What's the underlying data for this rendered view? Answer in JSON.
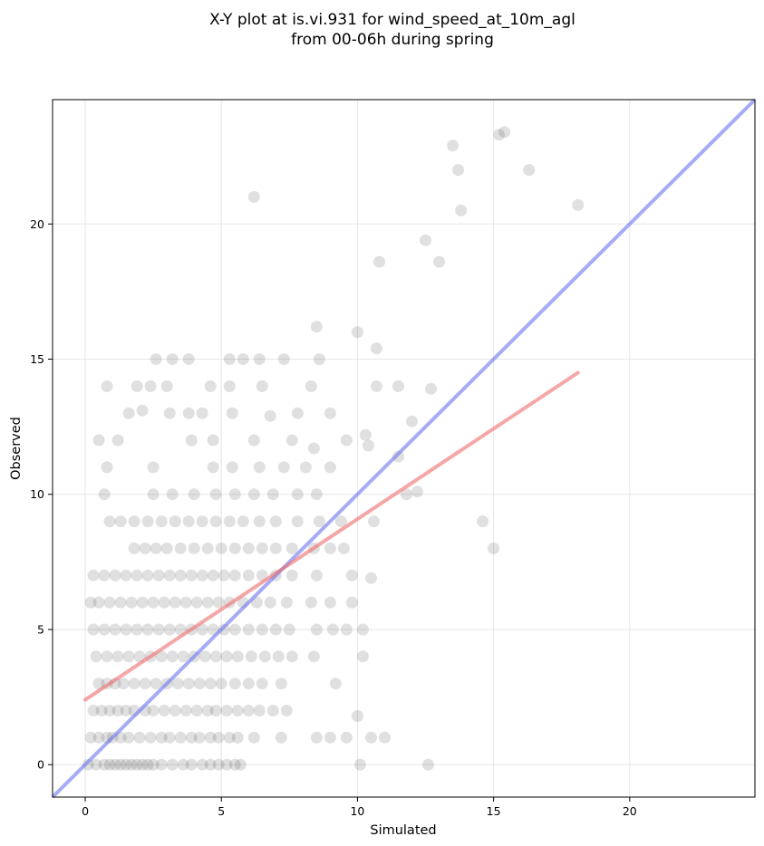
{
  "chart_data": {
    "type": "scatter",
    "title_lines": [
      "X-Y plot at is.vi.931 for wind_speed_at_10m_agl",
      "from 00-06h during spring"
    ],
    "xlabel": "Simulated",
    "ylabel": "Observed",
    "xlim": [
      -1.2,
      24.6
    ],
    "ylim": [
      -1.2,
      24.6
    ],
    "xticks": [
      0,
      5,
      10,
      15,
      20
    ],
    "yticks": [
      0,
      5,
      10,
      15,
      20
    ],
    "grid": true,
    "point_color": "#555555",
    "point_opacity": 0.18,
    "points": [
      [
        0.1,
        0
      ],
      [
        0.4,
        0
      ],
      [
        0.7,
        0
      ],
      [
        0.9,
        0
      ],
      [
        1.1,
        0
      ],
      [
        1.3,
        0
      ],
      [
        1.5,
        0
      ],
      [
        1.7,
        0
      ],
      [
        1.9,
        0
      ],
      [
        2.1,
        0
      ],
      [
        2.3,
        0
      ],
      [
        2.5,
        0
      ],
      [
        2.8,
        0
      ],
      [
        3.2,
        0
      ],
      [
        3.6,
        0
      ],
      [
        3.9,
        0
      ],
      [
        4.3,
        0
      ],
      [
        4.6,
        0
      ],
      [
        4.9,
        0
      ],
      [
        5.2,
        0
      ],
      [
        5.5,
        0
      ],
      [
        5.7,
        0
      ],
      [
        10.1,
        0
      ],
      [
        12.6,
        0
      ],
      [
        0.2,
        1
      ],
      [
        0.5,
        1
      ],
      [
        0.8,
        1
      ],
      [
        1.0,
        1
      ],
      [
        1.3,
        1
      ],
      [
        1.6,
        1
      ],
      [
        2.0,
        1
      ],
      [
        2.4,
        1
      ],
      [
        2.8,
        1
      ],
      [
        3.1,
        1
      ],
      [
        3.5,
        1
      ],
      [
        3.9,
        1
      ],
      [
        4.2,
        1
      ],
      [
        4.6,
        1
      ],
      [
        4.9,
        1
      ],
      [
        5.3,
        1
      ],
      [
        5.6,
        1
      ],
      [
        6.2,
        1
      ],
      [
        7.2,
        1
      ],
      [
        8.5,
        1
      ],
      [
        9.0,
        1
      ],
      [
        9.6,
        1
      ],
      [
        10.5,
        1
      ],
      [
        11.0,
        1
      ],
      [
        0.3,
        2
      ],
      [
        0.6,
        2
      ],
      [
        0.9,
        2
      ],
      [
        1.2,
        2
      ],
      [
        1.5,
        2
      ],
      [
        1.8,
        2
      ],
      [
        2.2,
        2
      ],
      [
        2.5,
        2
      ],
      [
        2.9,
        2
      ],
      [
        3.3,
        2
      ],
      [
        3.7,
        2
      ],
      [
        4.1,
        2
      ],
      [
        4.5,
        2
      ],
      [
        4.8,
        2
      ],
      [
        5.2,
        2
      ],
      [
        5.6,
        2
      ],
      [
        6.0,
        2
      ],
      [
        6.4,
        2
      ],
      [
        6.9,
        2
      ],
      [
        7.4,
        2
      ],
      [
        10.0,
        1.8
      ],
      [
        0.5,
        3
      ],
      [
        0.8,
        3
      ],
      [
        1.1,
        3
      ],
      [
        1.4,
        3
      ],
      [
        1.8,
        3
      ],
      [
        2.2,
        3
      ],
      [
        2.6,
        3
      ],
      [
        3.0,
        3
      ],
      [
        3.4,
        3
      ],
      [
        3.8,
        3
      ],
      [
        4.2,
        3
      ],
      [
        4.6,
        3
      ],
      [
        5.0,
        3
      ],
      [
        5.5,
        3
      ],
      [
        6.0,
        3
      ],
      [
        6.5,
        3
      ],
      [
        7.2,
        3
      ],
      [
        9.2,
        3
      ],
      [
        0.4,
        4
      ],
      [
        0.8,
        4
      ],
      [
        1.2,
        4
      ],
      [
        1.6,
        4
      ],
      [
        2.0,
        4
      ],
      [
        2.4,
        4
      ],
      [
        2.8,
        4
      ],
      [
        3.2,
        4
      ],
      [
        3.6,
        4
      ],
      [
        4.0,
        4
      ],
      [
        4.4,
        4
      ],
      [
        4.8,
        4
      ],
      [
        5.2,
        4
      ],
      [
        5.6,
        4
      ],
      [
        6.1,
        4
      ],
      [
        6.6,
        4
      ],
      [
        7.1,
        4
      ],
      [
        7.6,
        4
      ],
      [
        8.4,
        4
      ],
      [
        10.2,
        4
      ],
      [
        0.3,
        5
      ],
      [
        0.7,
        5
      ],
      [
        1.1,
        5
      ],
      [
        1.5,
        5
      ],
      [
        1.9,
        5
      ],
      [
        2.3,
        5
      ],
      [
        2.7,
        5
      ],
      [
        3.1,
        5
      ],
      [
        3.5,
        5
      ],
      [
        3.9,
        5
      ],
      [
        4.3,
        5
      ],
      [
        4.7,
        5
      ],
      [
        5.1,
        5
      ],
      [
        5.5,
        5
      ],
      [
        6.0,
        5
      ],
      [
        6.5,
        5
      ],
      [
        7.0,
        5
      ],
      [
        7.5,
        5
      ],
      [
        8.5,
        5
      ],
      [
        9.1,
        5
      ],
      [
        9.6,
        5
      ],
      [
        10.2,
        5
      ],
      [
        0.2,
        6
      ],
      [
        0.5,
        6
      ],
      [
        0.9,
        6
      ],
      [
        1.3,
        6
      ],
      [
        1.7,
        6
      ],
      [
        2.1,
        6
      ],
      [
        2.5,
        6
      ],
      [
        2.9,
        6
      ],
      [
        3.3,
        6
      ],
      [
        3.7,
        6
      ],
      [
        4.1,
        6
      ],
      [
        4.5,
        6
      ],
      [
        4.9,
        6
      ],
      [
        5.3,
        6
      ],
      [
        5.8,
        6
      ],
      [
        6.3,
        6
      ],
      [
        6.8,
        6
      ],
      [
        7.4,
        6
      ],
      [
        8.3,
        6
      ],
      [
        9.0,
        6
      ],
      [
        9.8,
        6
      ],
      [
        0.3,
        7
      ],
      [
        0.7,
        7
      ],
      [
        1.1,
        7
      ],
      [
        1.5,
        7
      ],
      [
        1.9,
        7
      ],
      [
        2.3,
        7
      ],
      [
        2.7,
        7
      ],
      [
        3.1,
        7
      ],
      [
        3.5,
        7
      ],
      [
        3.9,
        7
      ],
      [
        4.3,
        7
      ],
      [
        4.7,
        7
      ],
      [
        5.1,
        7
      ],
      [
        5.5,
        7
      ],
      [
        6.0,
        7
      ],
      [
        6.5,
        7
      ],
      [
        7.0,
        7
      ],
      [
        7.6,
        7
      ],
      [
        8.5,
        7
      ],
      [
        9.8,
        7
      ],
      [
        10.5,
        6.9
      ],
      [
        1.8,
        8
      ],
      [
        2.2,
        8
      ],
      [
        2.6,
        8
      ],
      [
        3.0,
        8
      ],
      [
        3.5,
        8
      ],
      [
        4.0,
        8
      ],
      [
        4.5,
        8
      ],
      [
        5.0,
        8
      ],
      [
        5.5,
        8
      ],
      [
        6.0,
        8
      ],
      [
        6.5,
        8
      ],
      [
        7.0,
        8
      ],
      [
        7.6,
        8
      ],
      [
        8.4,
        8
      ],
      [
        9.0,
        8
      ],
      [
        9.5,
        8
      ],
      [
        15.0,
        8
      ],
      [
        0.9,
        9
      ],
      [
        1.3,
        9
      ],
      [
        1.8,
        9
      ],
      [
        2.3,
        9
      ],
      [
        2.8,
        9
      ],
      [
        3.3,
        9
      ],
      [
        3.8,
        9
      ],
      [
        4.3,
        9
      ],
      [
        4.8,
        9
      ],
      [
        5.3,
        9
      ],
      [
        5.8,
        9
      ],
      [
        6.4,
        9
      ],
      [
        7.0,
        9
      ],
      [
        7.8,
        9
      ],
      [
        8.6,
        9
      ],
      [
        9.4,
        9
      ],
      [
        10.6,
        9
      ],
      [
        14.6,
        9
      ],
      [
        0.7,
        10
      ],
      [
        2.5,
        10
      ],
      [
        3.2,
        10
      ],
      [
        4.0,
        10
      ],
      [
        4.8,
        10
      ],
      [
        5.5,
        10
      ],
      [
        6.2,
        10
      ],
      [
        6.9,
        10
      ],
      [
        7.8,
        10
      ],
      [
        8.5,
        10
      ],
      [
        11.8,
        10
      ],
      [
        12.2,
        10.1
      ],
      [
        0.8,
        11
      ],
      [
        2.5,
        11
      ],
      [
        4.7,
        11
      ],
      [
        5.4,
        11
      ],
      [
        6.4,
        11
      ],
      [
        7.3,
        11
      ],
      [
        8.1,
        11
      ],
      [
        9.0,
        11
      ],
      [
        10.4,
        11.8
      ],
      [
        11.5,
        11.4
      ],
      [
        0.5,
        12
      ],
      [
        1.2,
        12
      ],
      [
        3.9,
        12
      ],
      [
        4.7,
        12
      ],
      [
        6.2,
        12
      ],
      [
        7.6,
        12
      ],
      [
        8.4,
        11.7
      ],
      [
        9.6,
        12
      ],
      [
        10.3,
        12.2
      ],
      [
        12.0,
        12.7
      ],
      [
        1.6,
        13
      ],
      [
        2.1,
        13.1
      ],
      [
        3.1,
        13
      ],
      [
        3.8,
        13
      ],
      [
        4.3,
        13
      ],
      [
        5.4,
        13
      ],
      [
        6.8,
        12.9
      ],
      [
        7.8,
        13
      ],
      [
        9.0,
        13
      ],
      [
        12.7,
        13.9
      ],
      [
        0.8,
        14
      ],
      [
        1.9,
        14
      ],
      [
        2.4,
        14
      ],
      [
        3.0,
        14
      ],
      [
        4.6,
        14
      ],
      [
        5.3,
        14
      ],
      [
        6.5,
        14
      ],
      [
        8.3,
        14
      ],
      [
        10.7,
        14
      ],
      [
        11.5,
        14
      ],
      [
        2.6,
        15
      ],
      [
        3.2,
        15
      ],
      [
        3.8,
        15
      ],
      [
        5.3,
        15
      ],
      [
        5.8,
        15
      ],
      [
        6.4,
        15
      ],
      [
        7.3,
        15
      ],
      [
        8.6,
        15
      ],
      [
        10.7,
        15.4
      ],
      [
        8.5,
        16.2
      ],
      [
        10.0,
        16.0
      ],
      [
        10.8,
        18.6
      ],
      [
        13.0,
        18.6
      ],
      [
        12.5,
        19.4
      ],
      [
        6.2,
        21
      ],
      [
        13.8,
        20.5
      ],
      [
        18.1,
        20.7
      ],
      [
        13.7,
        22.0
      ],
      [
        16.3,
        22.0
      ],
      [
        13.5,
        22.9
      ],
      [
        15.2,
        23.3
      ],
      [
        15.4,
        23.4
      ]
    ],
    "identity_line": {
      "from": [
        -1.2,
        -1.2
      ],
      "to": [
        24.6,
        24.6
      ],
      "color": "#6b73ee"
    },
    "fit_line": {
      "from": [
        0,
        2.4
      ],
      "to": [
        18.1,
        14.5
      ],
      "color": "#ef6b6b"
    }
  }
}
